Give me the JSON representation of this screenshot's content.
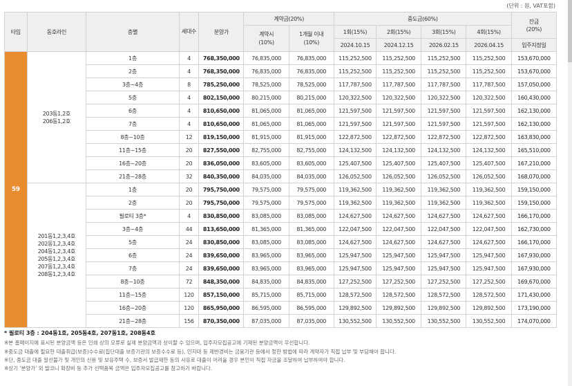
{
  "unit_note": "(단위 : 원, VAT포함)",
  "headers": {
    "type": "타입",
    "dongline": "동호라인",
    "floor": "층별",
    "households": "세대수",
    "price": "분양가",
    "contract": "계약금(20%)",
    "contract_on": "계약시\n(10%)",
    "contract_1m": "1개월 이내\n(10%)",
    "middle": "중도금(60%)",
    "m1": "1회(15%)",
    "m2": "2회(15%)",
    "m3": "3회(15%)",
    "m4": "4회(15%)",
    "d1": "2024.10.15",
    "d2": "2024.12.15",
    "d3": "2026.02.15",
    "d4": "2026.04.15",
    "balance": "잔금\n(20%)",
    "balance_date": "입주지정일"
  },
  "type_label": "59",
  "group_a_dong": "203동1,2호\n206동1,2호",
  "group_b_dong": "201동1,2,3,4호\n202동1,2,3,4호\n204동1,2,3,4호\n205동1,2,3,4호\n207동1,2,3,4호\n208동1,2,3,4호",
  "rows": [
    {
      "floor": "1층",
      "hh": "4",
      "price": "768,350,000",
      "c1": "76,835,000",
      "c2": "76,835,000",
      "m1": "115,252,500",
      "m2": "115,252,500",
      "m3": "115,252,500",
      "m4": "115,252,500",
      "bal": "153,670,000"
    },
    {
      "floor": "2층",
      "hh": "4",
      "price": "768,350,000",
      "c1": "76,835,000",
      "c2": "76,835,000",
      "m1": "115,252,500",
      "m2": "115,252,500",
      "m3": "115,252,500",
      "m4": "115,252,500",
      "bal": "153,670,000"
    },
    {
      "floor": "3층~4층",
      "hh": "8",
      "price": "785,250,000",
      "c1": "78,525,000",
      "c2": "78,525,000",
      "m1": "117,787,500",
      "m2": "117,787,500",
      "m3": "117,787,500",
      "m4": "117,787,500",
      "bal": "157,050,000"
    },
    {
      "floor": "5층",
      "hh": "4",
      "price": "802,150,000",
      "c1": "80,215,000",
      "c2": "80,215,000",
      "m1": "120,322,500",
      "m2": "120,322,500",
      "m3": "120,322,500",
      "m4": "120,322,500",
      "bal": "160,430,000"
    },
    {
      "floor": "6층",
      "hh": "4",
      "price": "810,650,000",
      "c1": "81,065,000",
      "c2": "81,065,000",
      "m1": "121,597,500",
      "m2": "121,597,500",
      "m3": "121,597,500",
      "m4": "121,597,500",
      "bal": "162,130,000"
    },
    {
      "floor": "7층",
      "hh": "4",
      "price": "810,650,000",
      "c1": "81,065,000",
      "c2": "81,065,000",
      "m1": "121,597,500",
      "m2": "121,597,500",
      "m3": "121,597,500",
      "m4": "121,597,500",
      "bal": "162,130,000"
    },
    {
      "floor": "8층~10층",
      "hh": "12",
      "price": "819,150,000",
      "c1": "81,915,000",
      "c2": "81,915,000",
      "m1": "122,872,500",
      "m2": "122,872,500",
      "m3": "122,872,500",
      "m4": "122,872,500",
      "bal": "163,830,000"
    },
    {
      "floor": "11층~15층",
      "hh": "20",
      "price": "827,550,000",
      "c1": "82,755,000",
      "c2": "82,755,000",
      "m1": "124,132,500",
      "m2": "124,132,500",
      "m3": "124,132,500",
      "m4": "124,132,500",
      "bal": "165,510,000"
    },
    {
      "floor": "16층~20층",
      "hh": "20",
      "price": "836,050,000",
      "c1": "83,605,000",
      "c2": "83,605,000",
      "m1": "125,407,500",
      "m2": "125,407,500",
      "m3": "125,407,500",
      "m4": "125,407,500",
      "bal": "167,210,000"
    },
    {
      "floor": "21층~28층",
      "hh": "32",
      "price": "840,350,000",
      "c1": "84,035,000",
      "c2": "84,035,000",
      "m1": "126,052,500",
      "m2": "126,052,500",
      "m3": "126,052,500",
      "m4": "126,052,500",
      "bal": "168,070,000"
    },
    {
      "floor": "1층",
      "hh": "20",
      "price": "795,750,000",
      "c1": "79,575,000",
      "c2": "79,575,000",
      "m1": "119,362,500",
      "m2": "119,362,500",
      "m3": "119,362,500",
      "m4": "119,362,500",
      "bal": "159,150,000"
    },
    {
      "floor": "2층",
      "hh": "20",
      "price": "795,750,000",
      "c1": "79,575,000",
      "c2": "79,575,000",
      "m1": "119,362,500",
      "m2": "119,362,500",
      "m3": "119,362,500",
      "m4": "119,362,500",
      "bal": "159,150,000"
    },
    {
      "floor": "필로티 3층*",
      "hh": "4",
      "price": "830,850,000",
      "c1": "83,085,000",
      "c2": "83,085,000",
      "m1": "124,627,500",
      "m2": "124,627,500",
      "m3": "124,627,500",
      "m4": "124,627,500",
      "bal": "166,170,000"
    },
    {
      "floor": "3층~4층",
      "hh": "44",
      "price": "813,650,000",
      "c1": "81,365,000",
      "c2": "81,365,000",
      "m1": "122,047,500",
      "m2": "122,047,500",
      "m3": "122,047,500",
      "m4": "122,047,500",
      "bal": "162,730,000"
    },
    {
      "floor": "5층",
      "hh": "24",
      "price": "830,850,000",
      "c1": "83,085,000",
      "c2": "83,085,000",
      "m1": "124,627,500",
      "m2": "124,627,500",
      "m3": "124,627,500",
      "m4": "124,627,500",
      "bal": "166,170,000"
    },
    {
      "floor": "6층",
      "hh": "24",
      "price": "839,650,000",
      "c1": "83,965,000",
      "c2": "83,965,000",
      "m1": "125,947,500",
      "m2": "125,947,500",
      "m3": "125,947,500",
      "m4": "125,947,500",
      "bal": "167,930,000"
    },
    {
      "floor": "7층",
      "hh": "24",
      "price": "839,650,000",
      "c1": "83,965,000",
      "c2": "83,965,000",
      "m1": "125,947,500",
      "m2": "125,947,500",
      "m3": "125,947,500",
      "m4": "125,947,500",
      "bal": "167,930,000"
    },
    {
      "floor": "8층~10층",
      "hh": "72",
      "price": "848,350,000",
      "c1": "84,835,000",
      "c2": "84,835,000",
      "m1": "127,252,500",
      "m2": "127,252,500",
      "m3": "127,252,500",
      "m4": "127,252,500",
      "bal": "169,670,000"
    },
    {
      "floor": "11층~15층",
      "hh": "120",
      "price": "857,150,000",
      "c1": "85,715,000",
      "c2": "85,715,000",
      "m1": "128,572,500",
      "m2": "128,572,500",
      "m3": "128,572,500",
      "m4": "128,572,500",
      "bal": "171,430,000"
    },
    {
      "floor": "16층~20층",
      "hh": "120",
      "price": "865,950,000",
      "c1": "86,595,000",
      "c2": "86,595,000",
      "m1": "129,892,500",
      "m2": "129,892,500",
      "m3": "129,892,500",
      "m4": "129,892,500",
      "bal": "173,190,000"
    },
    {
      "floor": "21층~28층",
      "hh": "156",
      "price": "870,350,000",
      "c1": "87,035,000",
      "c2": "87,035,000",
      "m1": "130,552,500",
      "m2": "130,552,500",
      "m3": "130,552,500",
      "m4": "130,552,500",
      "bal": "174,070,000"
    }
  ],
  "notes": {
    "star": "* 필로티 3층 : 204동1호, 205동4호, 207동1호, 208동4호",
    "n1": "※본 홈페이지에 표시된 분양금액 등은 인쇄 상의 오류로 실제 분양금액과 상이할 수 있으며, 입주자모집공고에 기재된 분양금액이 우선합니다.",
    "n2": "※중도금 대출에 필요한 대출취급(보증)수수료(집단대출 보증기관의 보증수수료 등), 인지대 등 제반경비는 금융기관 등에서 정한 방법에 따라 계약자가 직접 납부 및 부담해야 합니다.",
    "n3": "※단, 중도금 대출 알선불가 및 개인의 신용 및 보유주택 수, 보증서 발급제한 등의 사유로 대출이 어려울 경우 본인이 직접 자금을 조달하여 납부하여야 합니다.",
    "n4": "※상기 '분양가' 외 발코니 확장비 등 추가 선택품목 금액은 입주자모집공고를 참고하기 바랍니다."
  }
}
